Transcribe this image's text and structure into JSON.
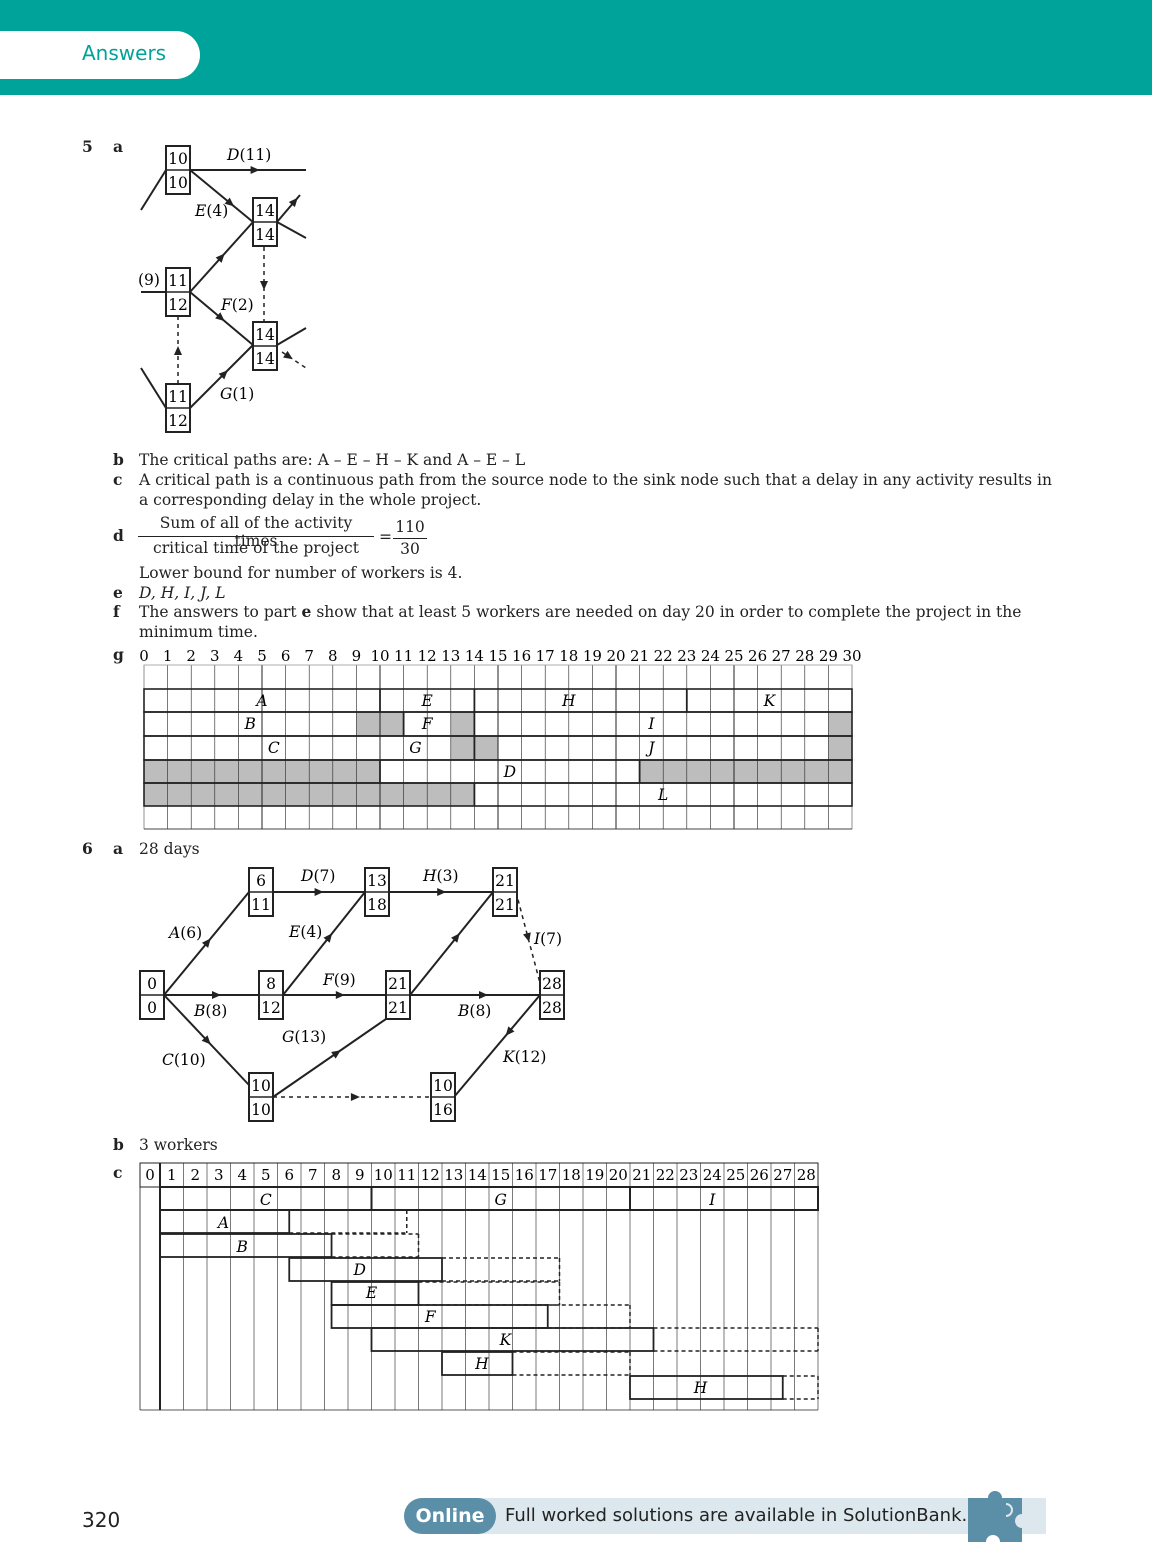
{
  "header": {
    "tab_label": "Answers"
  },
  "q5": {
    "number": "5",
    "a": {
      "label": "a",
      "nodes": [
        [
          "10",
          "10"
        ],
        [
          "14",
          "14"
        ],
        [
          "11",
          "12"
        ],
        [
          "14",
          "14"
        ],
        [
          "11",
          "12"
        ]
      ],
      "acts": [
        "D(11)",
        "E(4)",
        "(9)",
        "F(2)",
        "G(1)"
      ]
    },
    "b": {
      "label": "b",
      "text": "The critical paths are: A – E – H – K and A – E – L"
    },
    "c": {
      "label": "c",
      "line1": "A critical path is a continuous path from the source node to the sink node such that a delay in any activity results in",
      "line2": "a corresponding delay in the whole project."
    },
    "d": {
      "label": "d",
      "num1": "Sum of all of the activity times",
      "den1": "critical time of the project",
      "eq": "=",
      "num2": "110",
      "den2": "30",
      "line": "Lower bound for number of workers is 4."
    },
    "e": {
      "label": "e",
      "text": "D, H, I, J, L"
    },
    "f": {
      "label": "f",
      "line1": "The answers to part ",
      "bold": "e",
      "line1b": " show that at least 5 workers are needed on day 20 in order to complete the project in the",
      "line2": "minimum time."
    },
    "g": {
      "label": "g",
      "ticks": [
        "0",
        "1",
        "2",
        "3",
        "4",
        "5",
        "6",
        "7",
        "8",
        "9",
        "10",
        "11",
        "12",
        "13",
        "14",
        "15",
        "16",
        "17",
        "18",
        "19",
        "20",
        "21",
        "22",
        "23",
        "24",
        "25",
        "26",
        "27",
        "28",
        "29",
        "30"
      ],
      "labels": [
        "A",
        "E",
        "H",
        "K",
        "B",
        "F",
        "I",
        "C",
        "G",
        "J",
        "D",
        "L"
      ]
    }
  },
  "q6": {
    "number": "6",
    "a": {
      "label": "a",
      "text": "28 days",
      "nodes": [
        [
          "0",
          "0"
        ],
        [
          "6",
          "11"
        ],
        [
          "8",
          "12"
        ],
        [
          "10",
          "10"
        ],
        [
          "13",
          "18"
        ],
        [
          "21",
          "21"
        ],
        [
          "10",
          "16"
        ],
        [
          "21",
          "21"
        ],
        [
          "28",
          "28"
        ]
      ],
      "acts": [
        "A(6)",
        "B(8)",
        "C(10)",
        "D(7)",
        "E(4)",
        "F(9)",
        "G(13)",
        "H(3)",
        "I(7)",
        "B(8)",
        "K(12)"
      ]
    },
    "b": {
      "label": "b",
      "text": "3 workers"
    },
    "c": {
      "label": "c",
      "ticks": [
        "0",
        "1",
        "2",
        "3",
        "4",
        "5",
        "6",
        "7",
        "8",
        "9",
        "10",
        "11",
        "12",
        "13",
        "14",
        "15",
        "16",
        "17",
        "18",
        "19",
        "20",
        "21",
        "22",
        "23",
        "24",
        "25",
        "26",
        "27",
        "28"
      ],
      "labels": [
        "C",
        "G",
        "I",
        "A",
        "B",
        "D",
        "E",
        "F",
        "K",
        "H",
        "H"
      ]
    }
  },
  "footer": {
    "page": "320",
    "online": "Online",
    "text": "Full worked solutions are available in SolutionBank."
  }
}
